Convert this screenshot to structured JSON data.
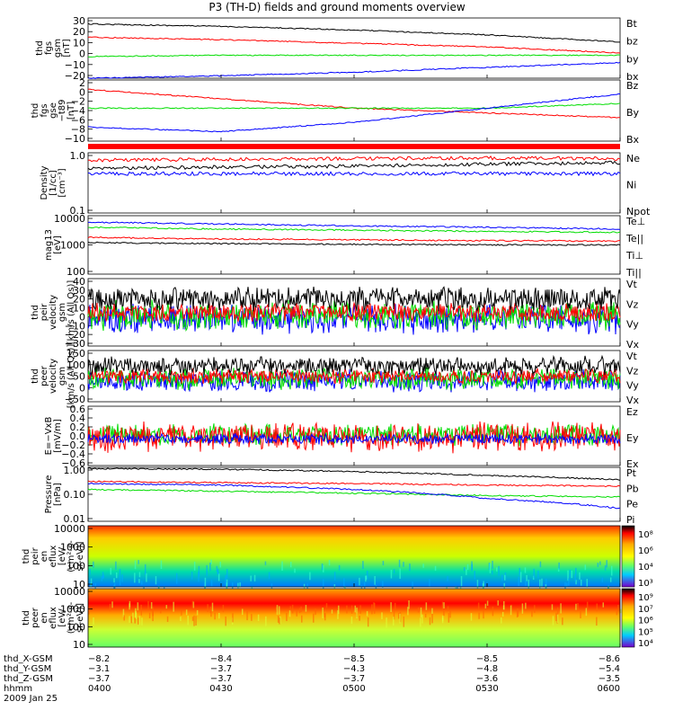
{
  "page_title": "P3 (TH-D) fields and ground moments overview",
  "colors": {
    "black": "#000000",
    "red": "#ff0000",
    "green": "#00dd00",
    "blue": "#0000ff"
  },
  "panels": [
    {
      "id": "fgs_gsm",
      "ylabel": [
        "thd",
        "fgs",
        "gsm",
        "[nT]"
      ],
      "ylim": [
        -20,
        30
      ],
      "yticks": [
        "30",
        "20",
        "10",
        "0",
        "−10",
        "−20"
      ],
      "legend": [
        {
          "name": "Bt",
          "color": "black"
        },
        {
          "name": "bz",
          "color": "red"
        },
        {
          "name": "by",
          "color": "green"
        },
        {
          "name": "bx",
          "color": "blue"
        }
      ]
    },
    {
      "id": "fgs_gse",
      "ylabel": [
        "thd",
        "fgs",
        "gse",
        "−t89",
        "[nT]"
      ],
      "ylim": [
        -10,
        3
      ],
      "yticks": [
        "2",
        "0",
        "−2",
        "−4",
        "−6",
        "−8",
        "−10"
      ],
      "legend": [
        {
          "name": "Bz",
          "color": "red"
        },
        {
          "name": "By",
          "color": "green"
        },
        {
          "name": "Bx",
          "color": "blue"
        }
      ]
    },
    {
      "id": "density",
      "ylabel": [
        "Density",
        "[1/cc]",
        "[cm⁻³]"
      ],
      "yticks": [
        "1.0",
        "0.1"
      ],
      "legend": [
        {
          "name": "Ne",
          "color": "red"
        },
        {
          "name": "Ni",
          "color": "black"
        },
        {
          "name": "Npot",
          "color": "blue"
        }
      ]
    },
    {
      "id": "temperature",
      "ylabel": [
        "mag13",
        "[eV]"
      ],
      "yticks": [
        "10000",
        "1000",
        "100"
      ],
      "legend": [
        {
          "name": "Te⊥",
          "color": "red"
        },
        {
          "name": "Te||",
          "color": "black"
        },
        {
          "name": "Ti⊥",
          "color": "blue"
        },
        {
          "name": "Ti||",
          "color": "green"
        }
      ]
    },
    {
      "id": "peir_vel",
      "ylabel": [
        "thd",
        "peir",
        "velocity",
        "gsm",
        "[km/s (All Qs)]"
      ],
      "yticks": [
        "40",
        "30",
        "20",
        "10",
        "0",
        "−10",
        "−20",
        "−30"
      ],
      "legend": [
        {
          "name": "Vt",
          "color": "black"
        },
        {
          "name": "Vz",
          "color": "red"
        },
        {
          "name": "Vy",
          "color": "green"
        },
        {
          "name": "Vx",
          "color": "blue"
        }
      ]
    },
    {
      "id": "peer_vel",
      "ylabel": [
        "thd",
        "peer",
        "velocity",
        "gsm",
        "[km/s (All Qs)]"
      ],
      "yticks": [
        "150",
        "100",
        "50",
        "0",
        "−50"
      ],
      "legend": [
        {
          "name": "Vt",
          "color": "black"
        },
        {
          "name": "Vz",
          "color": "red"
        },
        {
          "name": "Vy",
          "color": "green"
        },
        {
          "name": "Vx",
          "color": "blue"
        }
      ]
    },
    {
      "id": "efield",
      "ylabel": [
        "E=−VxB",
        "[mV/m]"
      ],
      "yticks": [
        "0.6",
        "0.4",
        "0.2",
        "0.0",
        "−0.2",
        "−0.4",
        "−0.6"
      ],
      "legend": [
        {
          "name": "Ez",
          "color": "red"
        },
        {
          "name": "Ey",
          "color": "green"
        },
        {
          "name": "Ex",
          "color": "blue"
        }
      ]
    },
    {
      "id": "pressure",
      "ylabel": [
        "Pressure",
        "[nPa]"
      ],
      "yticks": [
        "1.00",
        "0.10",
        "0.01"
      ],
      "legend": [
        {
          "name": "Pt",
          "color": "black"
        },
        {
          "name": "Pb",
          "color": "red"
        },
        {
          "name": "Pe",
          "color": "green"
        },
        {
          "name": "Pi",
          "color": "blue"
        }
      ]
    },
    {
      "id": "peir_spec",
      "ylabel": [
        "thd",
        "peir",
        "en",
        "eflux",
        "[eV/",
        "(cm²-s-",
        "sr-eV)]"
      ],
      "yticks": [
        "10000",
        "1000",
        "100",
        "10"
      ],
      "colorbar": [
        "10⁸",
        "10⁶",
        "10⁴",
        "10³"
      ]
    },
    {
      "id": "peer_spec",
      "ylabel": [
        "thd",
        "peer",
        "en",
        "eflux",
        "[eV/",
        "(cm²-s-",
        "sr-eV)]"
      ],
      "yticks": [
        "10000",
        "1000",
        "100",
        "10"
      ],
      "colorbar": [
        "10⁹",
        "10⁷",
        "10⁶",
        "10⁵",
        "10⁴"
      ]
    }
  ],
  "footer": {
    "rows": [
      {
        "label": "thd_X-GSM",
        "values": [
          "−8.2",
          "−8.4",
          "−8.5",
          "−8.5",
          "−8.6"
        ]
      },
      {
        "label": "thd_Y-GSM",
        "values": [
          "−3.1",
          "−3.7",
          "−4.3",
          "−4.8",
          "−5.4"
        ]
      },
      {
        "label": "thd_Z-GSM",
        "values": [
          "−3.7",
          "−3.7",
          "−3.7",
          "−3.6",
          "−3.5"
        ]
      },
      {
        "label": "hhmm",
        "values": [
          "0400",
          "0430",
          "0500",
          "0530",
          "0600"
        ]
      }
    ],
    "date": "2009 Jan 25"
  },
  "chart_data": {
    "type": "line",
    "x": [
      "0400",
      "0430",
      "0500",
      "0530",
      "0600"
    ],
    "series": [
      {
        "panel": "fgs_gsm",
        "name": "Bt",
        "values": [
          25,
          23,
          20,
          16,
          10
        ]
      },
      {
        "panel": "fgs_gsm",
        "name": "bz",
        "values": [
          14,
          12,
          9,
          6,
          1
        ]
      },
      {
        "panel": "fgs_gsm",
        "name": "by",
        "values": [
          -2,
          -1,
          -1,
          -1,
          -1
        ]
      },
      {
        "panel": "fgs_gsm",
        "name": "bx",
        "values": [
          -20,
          -18,
          -15,
          -11,
          -7
        ]
      },
      {
        "panel": "fgs_gse",
        "name": "Bz",
        "values": [
          1,
          -1,
          -3,
          -4,
          -5
        ]
      },
      {
        "panel": "fgs_gse",
        "name": "By",
        "values": [
          -3,
          -3,
          -3,
          -3,
          -2
        ]
      },
      {
        "panel": "fgs_gse",
        "name": "Bx",
        "values": [
          -7,
          -8,
          -6,
          -3,
          0
        ]
      },
      {
        "panel": "density",
        "name": "Ne",
        "values": [
          0.75,
          0.78,
          0.8,
          0.82,
          0.8
        ]
      },
      {
        "panel": "density",
        "name": "Ni",
        "values": [
          0.55,
          0.58,
          0.6,
          0.65,
          0.68
        ]
      },
      {
        "panel": "density",
        "name": "Npot",
        "values": [
          0.45,
          0.45,
          0.45,
          0.45,
          0.45
        ]
      },
      {
        "panel": "temperature",
        "name": "Ti⊥",
        "values": [
          6000,
          5200,
          4500,
          4000,
          3500
        ]
      },
      {
        "panel": "temperature",
        "name": "Ti||",
        "values": [
          4000,
          3500,
          3200,
          2900,
          2700
        ]
      },
      {
        "panel": "temperature",
        "name": "Te⊥",
        "values": [
          1800,
          1600,
          1500,
          1400,
          1350
        ]
      },
      {
        "panel": "temperature",
        "name": "Te||",
        "values": [
          1200,
          1100,
          1050,
          1000,
          1000
        ]
      },
      {
        "panel": "pressure",
        "name": "Pt",
        "values": [
          0.9,
          0.85,
          0.7,
          0.5,
          0.35
        ]
      },
      {
        "panel": "pressure",
        "name": "Pb",
        "values": [
          0.3,
          0.27,
          0.25,
          0.22,
          0.2
        ]
      },
      {
        "panel": "pressure",
        "name": "Pe",
        "values": [
          0.15,
          0.13,
          0.11,
          0.09,
          0.08
        ]
      },
      {
        "panel": "pressure",
        "name": "Pi",
        "values": [
          0.25,
          0.22,
          0.15,
          0.07,
          0.03
        ]
      }
    ]
  }
}
